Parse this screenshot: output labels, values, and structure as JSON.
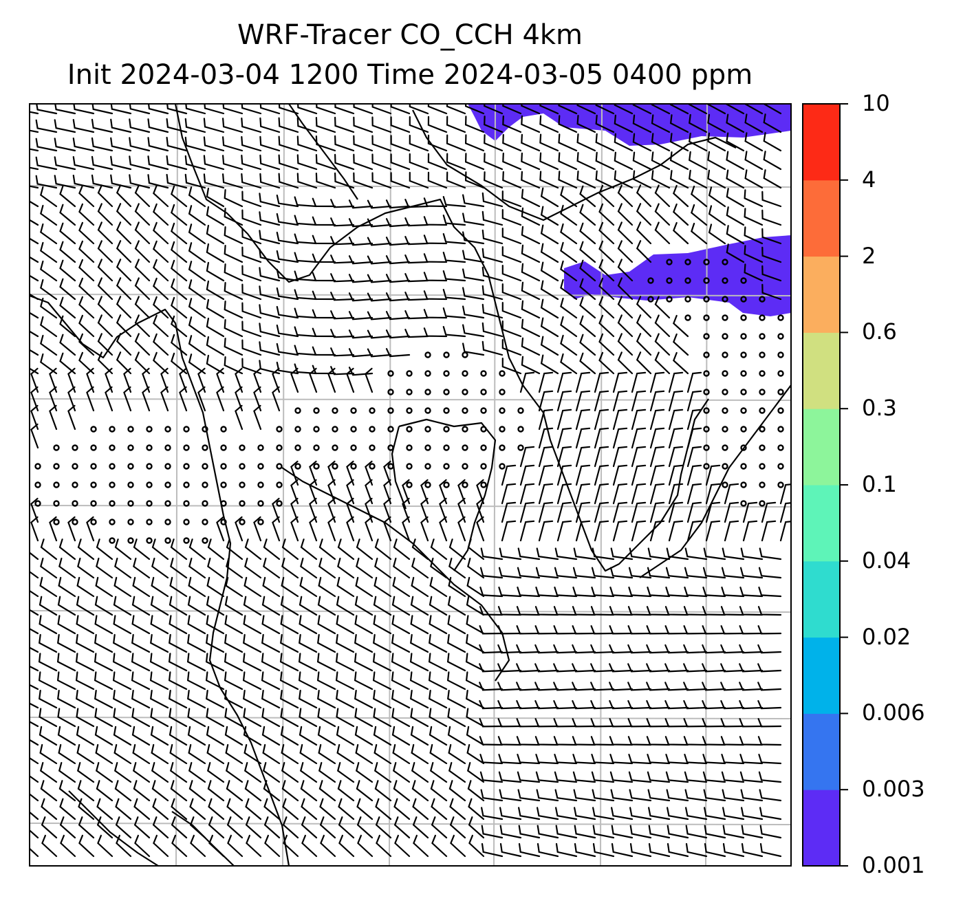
{
  "title": {
    "line1": "WRF-Tracer CO_CCH 4km",
    "line2": "Init 2024-03-04 1200 Time 2024-03-05 0400 ppm"
  },
  "colorbar": {
    "levels": [
      "0.001",
      "0.003",
      "0.006",
      "0.02",
      "0.04",
      "0.1",
      "0.3",
      "0.6",
      "2",
      "4",
      "10"
    ],
    "colors": [
      "#5d2cf5",
      "#3575f0",
      "#00b2ea",
      "#2fdccf",
      "#5ef4b8",
      "#8df59b",
      "#d0e080",
      "#fbae5e",
      "#fd6c39",
      "#fd2a16"
    ]
  },
  "map": {
    "shading_color": "#5d2cf5",
    "grid_color": "#bcbcbc",
    "coast_color": "#000000",
    "barb_color": "#000000",
    "plume_areas": [
      "north-edge band",
      "eastern band"
    ],
    "calm_symbol": "open circle"
  }
}
